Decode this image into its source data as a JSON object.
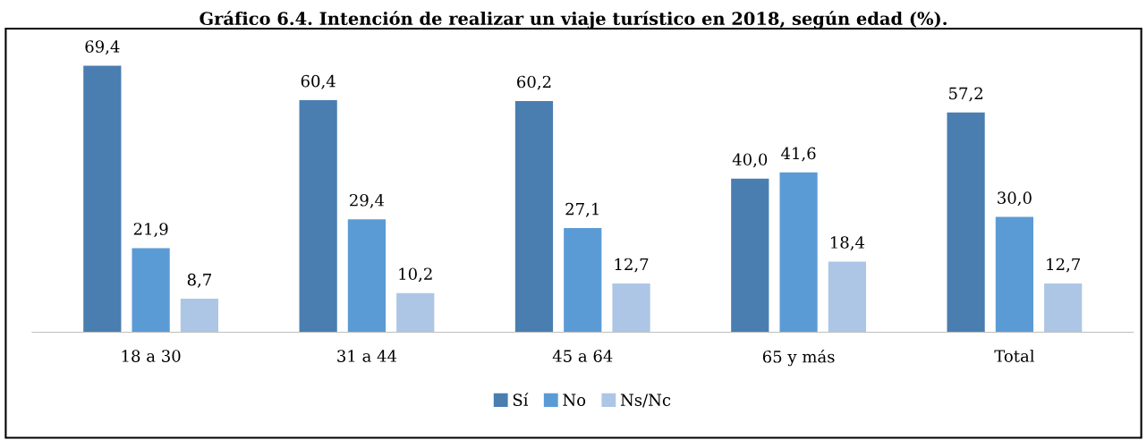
{
  "chart_data": {
    "type": "bar",
    "title": "Gráfico 6.4. Intención de realizar un viaje turístico en 2018, según edad (%).",
    "categories": [
      "18 a 30",
      "31 a 44",
      "45 a 64",
      "65 y más",
      "Total"
    ],
    "series": [
      {
        "name": "Sí",
        "color": "#4a7eb0",
        "values": [
          69.4,
          60.4,
          60.2,
          40.0,
          57.2
        ],
        "value_labels": [
          "69,4",
          "60,4",
          "60,2",
          "40,0",
          "57,2"
        ]
      },
      {
        "name": "No",
        "color": "#5b9bd5",
        "values": [
          21.9,
          29.4,
          27.1,
          41.6,
          30.0
        ],
        "value_labels": [
          "21,9",
          "29,4",
          "27,1",
          "41,6",
          "30,0"
        ]
      },
      {
        "name": "Ns/Nc",
        "color": "#adc6e5",
        "values": [
          8.7,
          10.2,
          12.7,
          18.4,
          12.7
        ],
        "value_labels": [
          "8,7",
          "10,2",
          "12,7",
          "18,4",
          "12,7"
        ]
      }
    ],
    "tick_labels": "x",
    "grid": false,
    "legend": "bottom"
  }
}
